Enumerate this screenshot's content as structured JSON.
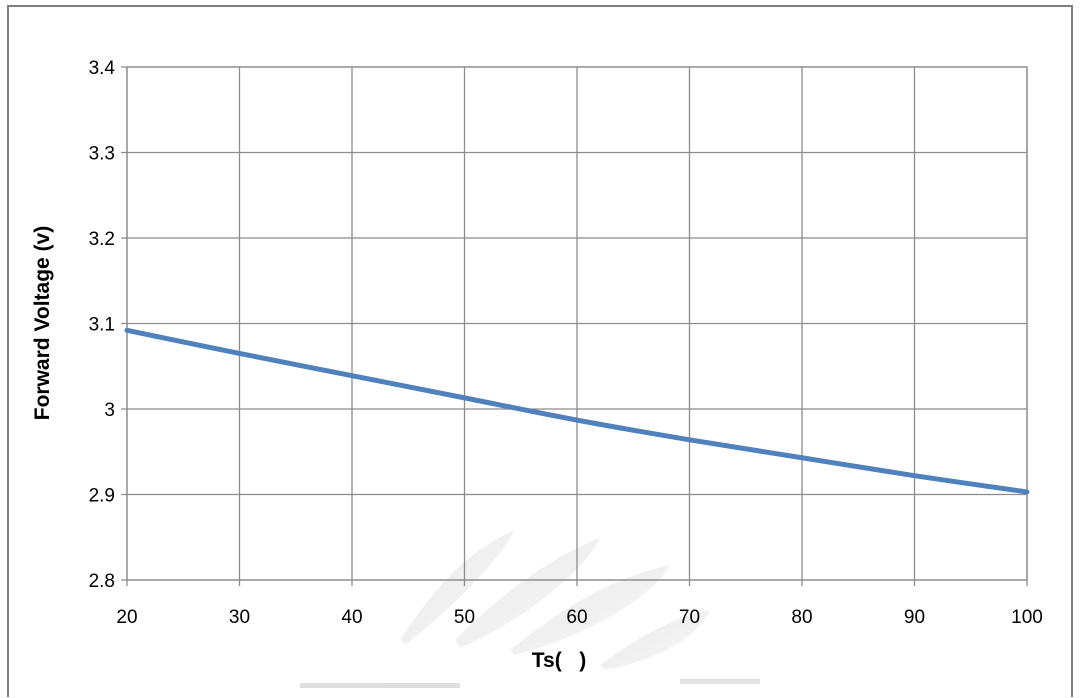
{
  "chart_data": {
    "type": "line",
    "title": "",
    "xlabel": "Ts(   )",
    "ylabel": "Forward Voltage (v)",
    "xlim": [
      20,
      100
    ],
    "ylim": [
      2.8,
      3.4
    ],
    "x_ticks": [
      20,
      30,
      40,
      50,
      60,
      70,
      80,
      90,
      100
    ],
    "y_ticks": [
      2.8,
      2.9,
      3.0,
      3.1,
      3.2,
      3.3,
      3.4
    ],
    "x_tick_labels": [
      "20",
      "30",
      "40",
      "50",
      "60",
      "70",
      "80",
      "90",
      "100"
    ],
    "y_tick_labels": [
      "2.8",
      "2.9",
      "3",
      "3.1",
      "3.2",
      "3.3",
      "3.4"
    ],
    "grid": true,
    "legend": "none",
    "series": [
      {
        "color": "#4f81bd",
        "x": [
          20,
          30,
          40,
          50,
          60,
          70,
          80,
          90,
          100
        ],
        "y": [
          3.092,
          3.065,
          3.039,
          3.013,
          2.987,
          2.964,
          2.943,
          2.922,
          2.903
        ]
      }
    ]
  }
}
